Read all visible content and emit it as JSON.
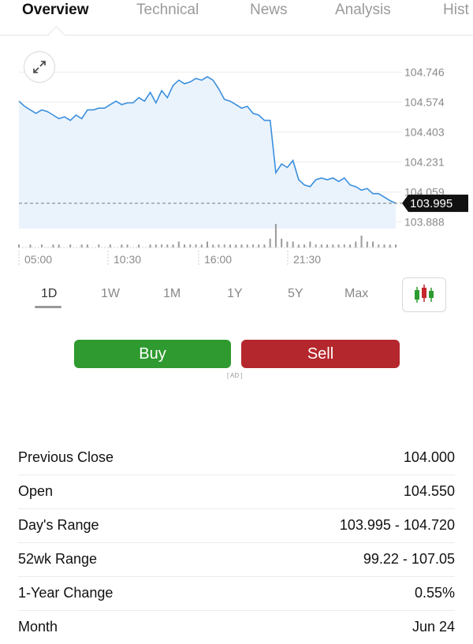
{
  "tabs": [
    "Overview",
    "Technical",
    "News",
    "Analysis",
    "Hist"
  ],
  "chart": {
    "y_ticks": [
      "104.746",
      "104.574",
      "104.403",
      "104.231",
      "104.059",
      "103.888"
    ],
    "x_ticks": [
      "05:00",
      "10:30",
      "16:00",
      "21:30"
    ],
    "current_price": "103.995",
    "line_color": "#3b8fde",
    "fill_color": "#eaf3fc"
  },
  "chart_data": {
    "type": "line",
    "x_ticks": [
      "05:00",
      "10:30",
      "16:00",
      "21:30"
    ],
    "ylim": [
      103.85,
      104.78
    ],
    "series": [
      {
        "values": [
          104.58,
          104.55,
          104.53,
          104.51,
          104.53,
          104.52,
          104.5,
          104.48,
          104.49,
          104.47,
          104.5,
          104.48,
          104.53,
          104.53,
          104.54,
          104.54,
          104.56,
          104.58,
          104.56,
          104.57,
          104.57,
          104.6,
          104.58,
          104.63,
          104.57,
          104.64,
          104.6,
          104.67,
          104.7,
          104.68,
          104.69,
          104.71,
          104.7,
          104.72,
          104.7,
          104.65,
          104.59,
          104.58,
          104.56,
          104.54,
          104.55,
          104.51,
          104.5,
          104.47,
          104.47,
          104.17,
          104.22,
          104.2,
          104.24,
          104.13,
          104.1,
          104.09,
          104.13,
          104.14,
          104.13,
          104.14,
          104.12,
          104.14,
          104.1,
          104.09,
          104.07,
          104.08,
          104.05,
          104.05,
          104.03,
          104.01,
          103.995
        ]
      }
    ],
    "volume": [
      1,
      0,
      1,
      0,
      1,
      0,
      1,
      1,
      0,
      1,
      0,
      1,
      1,
      0,
      1,
      0,
      1,
      0,
      1,
      1,
      0,
      1,
      0,
      1,
      1,
      1,
      1,
      1,
      2,
      1,
      1,
      1,
      1,
      2,
      1,
      1,
      1,
      1,
      1,
      1,
      1,
      1,
      1,
      1,
      3,
      8,
      3,
      2,
      2,
      1,
      1,
      2,
      1,
      1,
      1,
      1,
      1,
      1,
      1,
      2,
      4,
      2,
      2,
      1,
      1,
      1,
      1
    ]
  },
  "periods": [
    "1D",
    "1W",
    "1M",
    "1Y",
    "5Y",
    "Max"
  ],
  "trade": {
    "buy": "Buy",
    "sell": "Sell",
    "ad": "[ AD ]"
  },
  "stats": [
    {
      "label": "Previous Close",
      "value": "104.000"
    },
    {
      "label": "Open",
      "value": "104.550"
    },
    {
      "label": "Day's Range",
      "value": "103.995 - 104.720"
    },
    {
      "label": "52wk Range",
      "value": "99.22 - 107.05"
    },
    {
      "label": "1-Year Change",
      "value": "0.55%"
    },
    {
      "label": "Month",
      "value": "Jun 24"
    }
  ]
}
